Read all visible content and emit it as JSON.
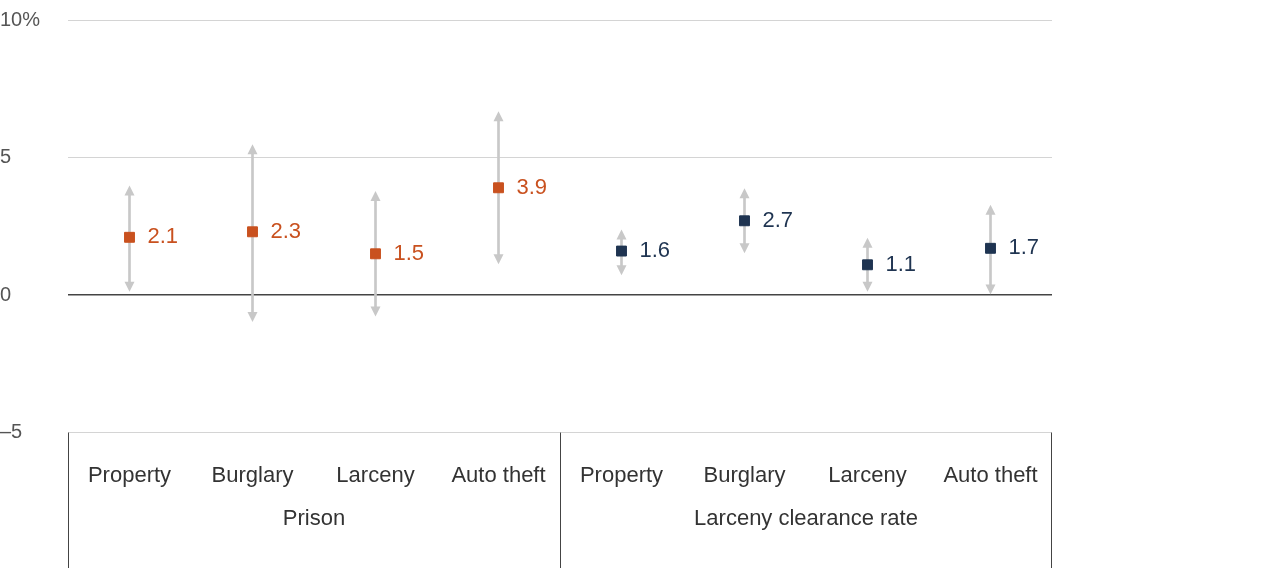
{
  "chart_data": {
    "type": "errorbar",
    "categories": [
      "Property",
      "Burglary",
      "Larceny",
      "Auto theft",
      "Property",
      "Burglary",
      "Larceny",
      "Auto theft"
    ],
    "category_groups": [
      "Prison",
      "Prison",
      "Prison",
      "Prison",
      "Larceny clearance rate",
      "Larceny clearance rate",
      "Larceny clearance rate",
      "Larceny clearance rate"
    ],
    "values": [
      2.1,
      2.3,
      1.5,
      3.9,
      1.6,
      2.7,
      1.1,
      1.7
    ],
    "error_low": [
      0.3,
      -0.8,
      -0.6,
      1.3,
      0.9,
      1.7,
      0.3,
      0.2
    ],
    "error_high": [
      3.8,
      5.3,
      3.6,
      6.5,
      2.2,
      3.7,
      1.9,
      3.1
    ],
    "colors": [
      "#c9511f",
      "#c9511f",
      "#c9511f",
      "#c9511f",
      "#1f3451",
      "#1f3451",
      "#1f3451",
      "#1f3451"
    ],
    "ylim": [
      -5,
      10
    ],
    "yticks": [
      {
        "value": -5,
        "label": "–5"
      },
      0,
      5,
      {
        "value": 10,
        "label": "10%"
      }
    ],
    "grid": true,
    "data_labels": true
  }
}
